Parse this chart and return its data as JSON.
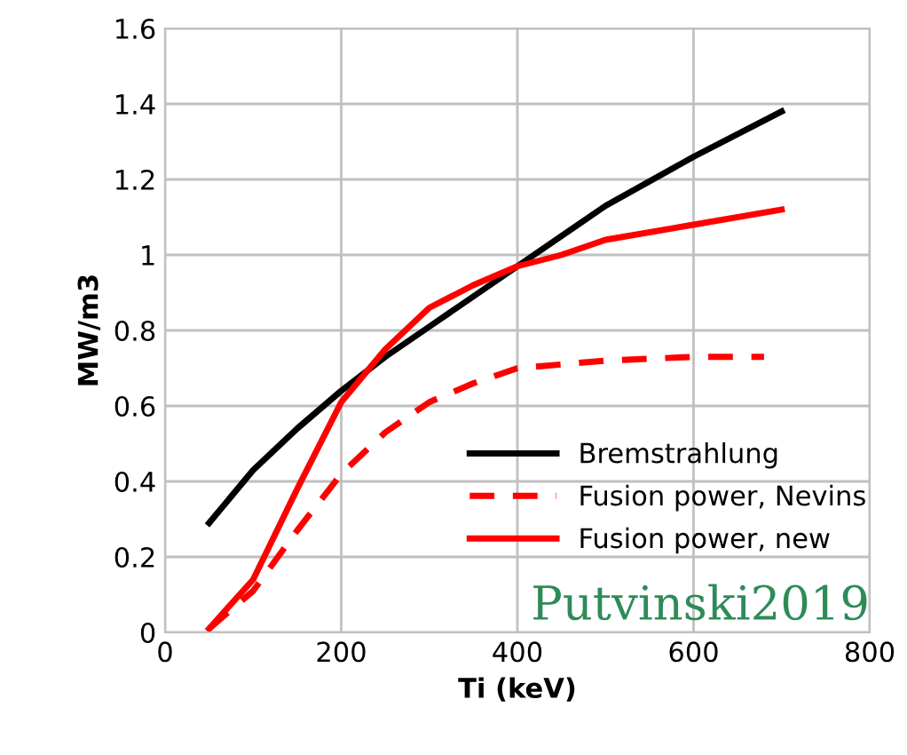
{
  "chart_data": {
    "type": "line",
    "xlabel": "Ti (keV)",
    "ylabel": "MW/m3",
    "xlim": [
      0,
      800
    ],
    "xticks": [
      0,
      200,
      400,
      600,
      800
    ],
    "ylim": [
      0,
      1.6
    ],
    "yticks": [
      0,
      0.2,
      0.4,
      0.6,
      0.8,
      1,
      1.2,
      1.4,
      1.6
    ],
    "grid": true,
    "legend": "bottom right",
    "marker": "none",
    "series": [
      {
        "name": "Bremstrahlung",
        "color": "#000000",
        "line_style": "solid",
        "x": [
          50,
          100,
          150,
          200,
          250,
          300,
          350,
          400,
          500,
          600,
          700
        ],
        "values": [
          0.29,
          0.43,
          0.54,
          0.64,
          0.73,
          0.81,
          0.89,
          0.97,
          1.13,
          1.26,
          1.38
        ]
      },
      {
        "name": "Fusion power, Nevins",
        "color": "#ff0000",
        "line_style": "dashed",
        "x": [
          50,
          100,
          150,
          200,
          250,
          300,
          350,
          400,
          500,
          600,
          680
        ],
        "values": [
          0.01,
          0.11,
          0.27,
          0.42,
          0.53,
          0.61,
          0.66,
          0.7,
          0.72,
          0.73,
          0.73
        ]
      },
      {
        "name": "Fusion power, new",
        "color": "#ff0000",
        "line_style": "solid",
        "x": [
          50,
          100,
          150,
          200,
          250,
          300,
          350,
          400,
          450,
          500,
          600,
          700
        ],
        "values": [
          0.01,
          0.14,
          0.38,
          0.61,
          0.75,
          0.86,
          0.92,
          0.97,
          1.0,
          1.04,
          1.08,
          1.12
        ]
      }
    ],
    "annotations": [
      "Putvinski2019"
    ]
  }
}
